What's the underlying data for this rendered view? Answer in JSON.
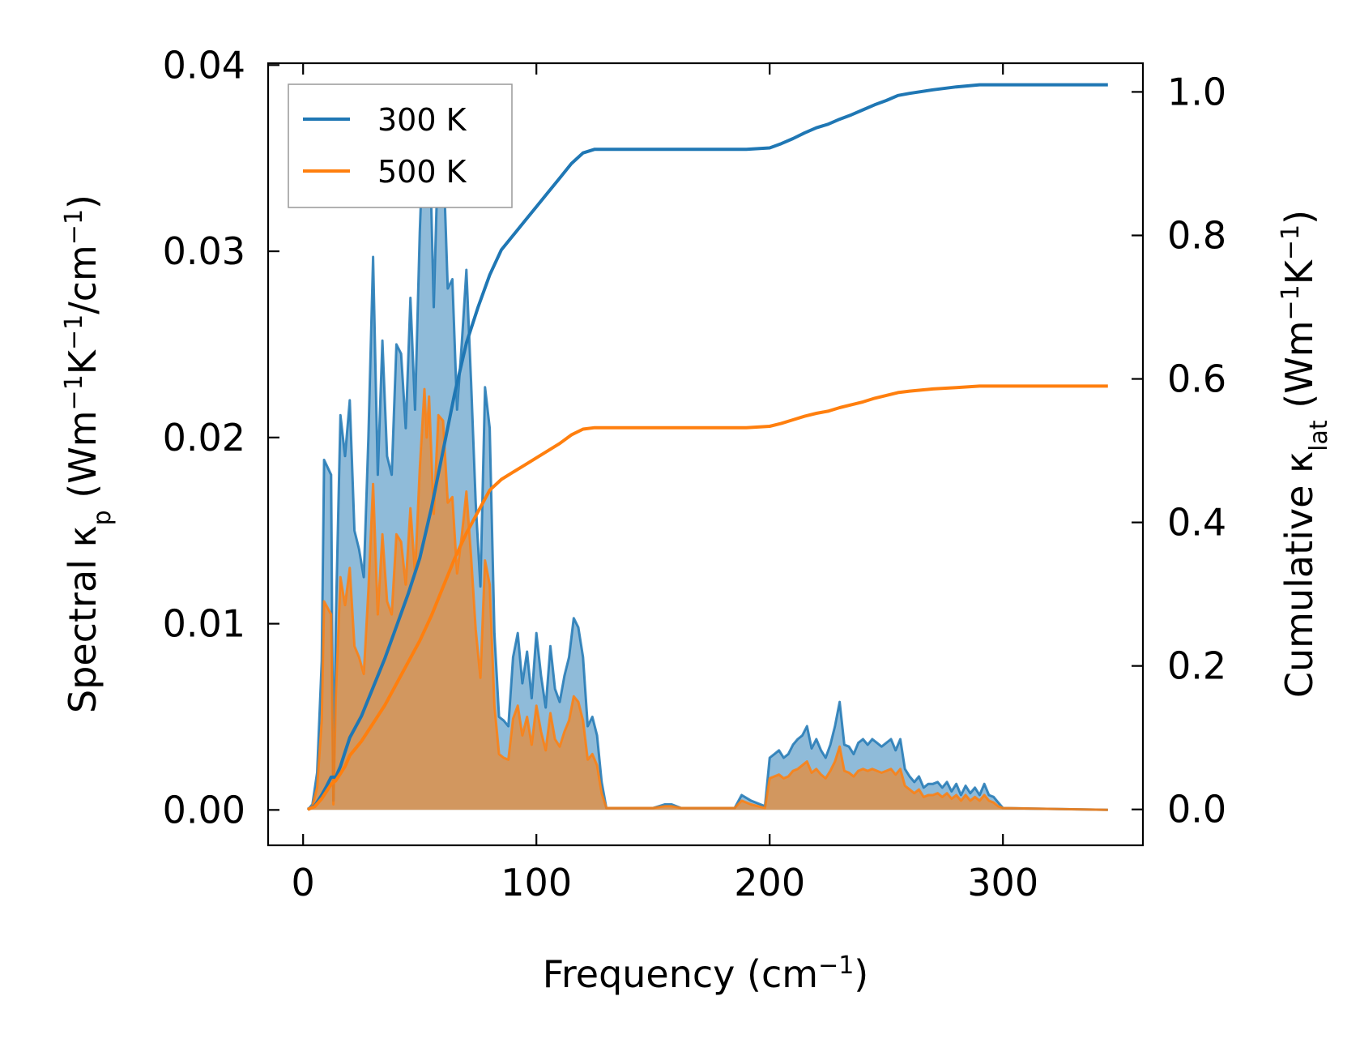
{
  "chart_data": {
    "type": "line",
    "xlabel": "Frequency (cm⁻¹)",
    "ylabel": "Spectral κₚ (Wm⁻¹K⁻¹/cm⁻¹)",
    "y2label": "Cumulative κ_lat (Wm⁻¹K⁻¹)",
    "xlim": [
      -15,
      360
    ],
    "ylim": [
      -0.0019,
      0.0401
    ],
    "y2lim": [
      -0.05,
      1.04
    ],
    "xticks": [
      "0",
      "100",
      "200",
      "300"
    ],
    "yticks": [
      "0.00",
      "0.01",
      "0.02",
      "0.03",
      "0.04"
    ],
    "y2ticks": [
      "0.0",
      "0.2",
      "0.4",
      "0.6",
      "0.8",
      "1.0"
    ],
    "legend_position": "top-left",
    "colors": {
      "300K": "#1f77b4",
      "500K": "#ff7f0e",
      "300K_fill": "#1f77b4",
      "500K_fill": "#ff7f0e"
    },
    "spectral": [
      {
        "name": "300 K",
        "x": [
          2,
          4,
          6,
          8,
          9,
          12,
          13,
          14,
          16,
          18,
          20,
          22,
          24,
          26,
          28,
          30,
          32,
          34,
          36,
          38,
          40,
          42,
          44,
          46,
          48,
          50,
          52,
          53,
          54,
          56,
          58,
          60,
          62,
          64,
          66,
          68,
          70,
          72,
          74,
          76,
          78,
          80,
          82,
          84,
          86,
          88,
          90,
          92,
          94,
          96,
          98,
          100,
          102,
          104,
          106,
          108,
          110,
          112,
          114,
          116,
          118,
          120,
          122,
          124,
          126,
          128,
          130,
          150,
          155,
          158,
          162,
          185,
          188,
          192,
          198,
          200,
          202,
          204,
          206,
          208,
          210,
          212,
          214,
          216,
          218,
          220,
          222,
          224,
          226,
          228,
          230,
          232,
          234,
          236,
          238,
          240,
          242,
          244,
          246,
          248,
          250,
          252,
          254,
          256,
          258,
          260,
          262,
          264,
          266,
          268,
          270,
          272,
          274,
          276,
          278,
          280,
          282,
          284,
          286,
          288,
          290,
          292,
          294,
          296,
          298,
          300,
          345
        ],
        "values": [
          0.0,
          0.0003,
          0.002,
          0.008,
          0.0188,
          0.018,
          0.0005,
          0.01,
          0.0212,
          0.019,
          0.022,
          0.015,
          0.014,
          0.0125,
          0.02,
          0.0297,
          0.018,
          0.0252,
          0.019,
          0.018,
          0.025,
          0.0245,
          0.0205,
          0.0275,
          0.0215,
          0.031,
          0.038,
          0.034,
          0.0375,
          0.027,
          0.036,
          0.0355,
          0.028,
          0.0285,
          0.0215,
          0.025,
          0.029,
          0.023,
          0.0165,
          0.012,
          0.0227,
          0.0205,
          0.0095,
          0.005,
          0.0048,
          0.0045,
          0.0082,
          0.0095,
          0.0068,
          0.0085,
          0.006,
          0.0095,
          0.0072,
          0.0055,
          0.0088,
          0.0065,
          0.0058,
          0.0072,
          0.0082,
          0.0103,
          0.0098,
          0.0082,
          0.0045,
          0.005,
          0.004,
          0.0015,
          0.0001,
          0.0001,
          0.0003,
          0.0003,
          0.0001,
          0.0001,
          0.0008,
          0.0005,
          0.0002,
          0.0028,
          0.003,
          0.0032,
          0.0028,
          0.003,
          0.0035,
          0.0038,
          0.004,
          0.0045,
          0.0033,
          0.0038,
          0.0032,
          0.0028,
          0.0035,
          0.0045,
          0.0058,
          0.0035,
          0.0034,
          0.003,
          0.0036,
          0.0038,
          0.0035,
          0.0038,
          0.0036,
          0.0034,
          0.0036,
          0.0038,
          0.0032,
          0.0038,
          0.0022,
          0.0018,
          0.0015,
          0.0018,
          0.0012,
          0.0014,
          0.0014,
          0.0015,
          0.0012,
          0.0015,
          0.001,
          0.0014,
          0.0008,
          0.0013,
          0.0009,
          0.0012,
          0.0008,
          0.0014,
          0.0008,
          0.0007,
          0.0004,
          0.0001,
          0.0
        ]
      },
      {
        "name": "500 K",
        "x": [
          2,
          4,
          6,
          8,
          9,
          12,
          13,
          14,
          16,
          18,
          20,
          22,
          24,
          26,
          28,
          30,
          32,
          34,
          36,
          38,
          40,
          42,
          44,
          46,
          48,
          50,
          52,
          53,
          54,
          56,
          58,
          60,
          62,
          64,
          66,
          68,
          70,
          72,
          74,
          76,
          78,
          80,
          82,
          84,
          86,
          88,
          90,
          92,
          94,
          96,
          98,
          100,
          102,
          104,
          106,
          108,
          110,
          112,
          114,
          116,
          118,
          120,
          122,
          124,
          126,
          128,
          130,
          150,
          155,
          158,
          162,
          185,
          188,
          192,
          198,
          200,
          202,
          204,
          206,
          208,
          210,
          212,
          214,
          216,
          218,
          220,
          222,
          224,
          226,
          228,
          230,
          232,
          234,
          236,
          238,
          240,
          242,
          244,
          246,
          248,
          250,
          252,
          254,
          256,
          258,
          260,
          262,
          264,
          266,
          268,
          270,
          272,
          274,
          276,
          278,
          280,
          282,
          284,
          286,
          288,
          290,
          292,
          294,
          296,
          298,
          300,
          345
        ],
        "values": [
          0.0,
          0.0002,
          0.0012,
          0.0048,
          0.0112,
          0.0105,
          0.0003,
          0.006,
          0.0125,
          0.011,
          0.013,
          0.0088,
          0.0082,
          0.0073,
          0.0118,
          0.0175,
          0.0105,
          0.0148,
          0.0112,
          0.0105,
          0.0148,
          0.0144,
          0.0121,
          0.0162,
          0.0127,
          0.0183,
          0.0226,
          0.02,
          0.0222,
          0.0159,
          0.0212,
          0.0209,
          0.0165,
          0.0168,
          0.0127,
          0.0147,
          0.0171,
          0.0136,
          0.0097,
          0.0071,
          0.0134,
          0.0121,
          0.0056,
          0.003,
          0.0028,
          0.0027,
          0.0049,
          0.0056,
          0.004,
          0.005,
          0.0035,
          0.0056,
          0.0042,
          0.0032,
          0.0052,
          0.0038,
          0.0034,
          0.0042,
          0.0048,
          0.0061,
          0.0058,
          0.0048,
          0.0027,
          0.003,
          0.0024,
          0.0009,
          0.0001,
          0.0001,
          0.0002,
          0.0002,
          0.0001,
          0.0001,
          0.0005,
          0.0003,
          0.0001,
          0.0017,
          0.0018,
          0.0019,
          0.0017,
          0.0018,
          0.0021,
          0.0022,
          0.0024,
          0.0026,
          0.002,
          0.0022,
          0.0019,
          0.0017,
          0.0021,
          0.0026,
          0.0034,
          0.0021,
          0.002,
          0.0018,
          0.0021,
          0.0022,
          0.0021,
          0.0022,
          0.0021,
          0.002,
          0.0021,
          0.0022,
          0.0019,
          0.0022,
          0.0013,
          0.0011,
          0.0009,
          0.0011,
          0.0007,
          0.0008,
          0.0008,
          0.0009,
          0.0007,
          0.0009,
          0.0006,
          0.0008,
          0.0005,
          0.0008,
          0.0005,
          0.0007,
          0.0005,
          0.0008,
          0.0005,
          0.0004,
          0.0002,
          0.0001,
          0.0
        ]
      }
    ],
    "cumulative": [
      {
        "name": "300 K",
        "x": [
          2,
          5,
          8,
          10,
          12,
          14,
          16,
          18,
          20,
          25,
          30,
          35,
          40,
          45,
          50,
          55,
          60,
          65,
          70,
          75,
          80,
          85,
          90,
          95,
          100,
          105,
          110,
          115,
          120,
          125,
          130,
          150,
          160,
          170,
          180,
          190,
          200,
          205,
          210,
          215,
          220,
          225,
          230,
          235,
          240,
          245,
          250,
          255,
          260,
          270,
          280,
          290,
          300,
          345
        ],
        "values": [
          0.0,
          0.005,
          0.02,
          0.032,
          0.045,
          0.045,
          0.06,
          0.08,
          0.1,
          0.13,
          0.17,
          0.21,
          0.255,
          0.3,
          0.35,
          0.42,
          0.5,
          0.58,
          0.65,
          0.7,
          0.745,
          0.78,
          0.8,
          0.82,
          0.84,
          0.86,
          0.88,
          0.9,
          0.915,
          0.92,
          0.92,
          0.92,
          0.92,
          0.92,
          0.92,
          0.92,
          0.922,
          0.928,
          0.935,
          0.943,
          0.95,
          0.955,
          0.962,
          0.968,
          0.975,
          0.982,
          0.988,
          0.995,
          0.998,
          1.003,
          1.007,
          1.01,
          1.01,
          1.01
        ]
      },
      {
        "name": "500 K",
        "x": [
          2,
          5,
          8,
          10,
          12,
          14,
          16,
          18,
          20,
          25,
          30,
          35,
          40,
          45,
          50,
          55,
          60,
          65,
          70,
          75,
          80,
          85,
          90,
          95,
          100,
          105,
          110,
          115,
          120,
          125,
          130,
          150,
          160,
          170,
          180,
          190,
          200,
          205,
          210,
          215,
          220,
          225,
          230,
          235,
          240,
          245,
          250,
          255,
          260,
          270,
          280,
          290,
          300,
          345
        ],
        "values": [
          0.0,
          0.004,
          0.015,
          0.025,
          0.035,
          0.04,
          0.05,
          0.06,
          0.075,
          0.095,
          0.12,
          0.145,
          0.175,
          0.205,
          0.235,
          0.27,
          0.31,
          0.35,
          0.385,
          0.415,
          0.445,
          0.46,
          0.47,
          0.48,
          0.49,
          0.5,
          0.51,
          0.522,
          0.53,
          0.532,
          0.532,
          0.532,
          0.532,
          0.532,
          0.532,
          0.532,
          0.534,
          0.538,
          0.543,
          0.548,
          0.552,
          0.555,
          0.56,
          0.564,
          0.568,
          0.573,
          0.577,
          0.581,
          0.583,
          0.586,
          0.588,
          0.59,
          0.59,
          0.59
        ]
      }
    ]
  }
}
